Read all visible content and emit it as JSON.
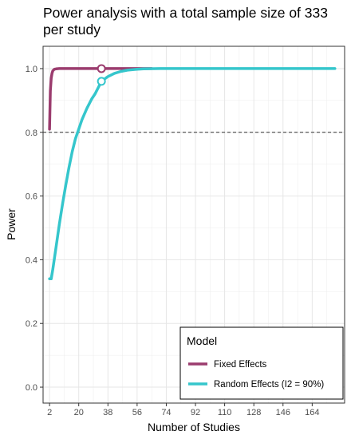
{
  "chart_data": {
    "type": "line",
    "title": "Power analysis with a total sample size of 333 per study",
    "xlabel": "Number of Studies",
    "ylabel": "Power",
    "xlim": [
      -2,
      184
    ],
    "ylim": [
      -0.05,
      1.07
    ],
    "x_ticks": [
      2,
      20,
      38,
      56,
      74,
      92,
      110,
      128,
      146,
      164
    ],
    "y_ticks": [
      0.0,
      0.2,
      0.4,
      0.6,
      0.8,
      1.0
    ],
    "y_tick_labels": [
      "0.0",
      "0.2",
      "0.4",
      "0.6",
      "0.8",
      "1.0"
    ],
    "grid": true,
    "reference_line": {
      "y": 0.8,
      "style": "dashed"
    },
    "legend": {
      "title": "Model",
      "placement": "bottom-right"
    },
    "series": [
      {
        "name": "Fixed Effects",
        "color": "#9B3C6E",
        "x": [
          2,
          2.5,
          3,
          3.5,
          4,
          5,
          6,
          8,
          10,
          15,
          20,
          34,
          50,
          65
        ],
        "y": [
          0.81,
          0.93,
          0.97,
          0.985,
          0.993,
          0.998,
          0.999,
          1.0,
          1.0,
          1.0,
          1.0,
          1.0,
          1.0,
          1.0
        ],
        "marker": {
          "x": 34,
          "y": 1.0
        }
      },
      {
        "name": "Random Effects (I2 = 90%)",
        "color": "#35C6CC",
        "x": [
          2,
          3,
          4,
          6,
          8,
          10,
          12,
          14,
          16,
          18,
          20,
          22,
          25,
          28,
          30,
          34,
          38,
          42,
          46,
          50,
          56,
          60,
          70,
          80,
          100,
          120,
          140,
          160,
          178
        ],
        "y": [
          0.34,
          0.34,
          0.37,
          0.44,
          0.51,
          0.575,
          0.635,
          0.69,
          0.74,
          0.78,
          0.81,
          0.84,
          0.875,
          0.905,
          0.92,
          0.96,
          0.975,
          0.985,
          0.991,
          0.995,
          0.998,
          0.999,
          1.0,
          1.0,
          1.0,
          1.0,
          1.0,
          1.0,
          1.0
        ],
        "marker": {
          "x": 34,
          "y": 0.96
        }
      }
    ]
  }
}
